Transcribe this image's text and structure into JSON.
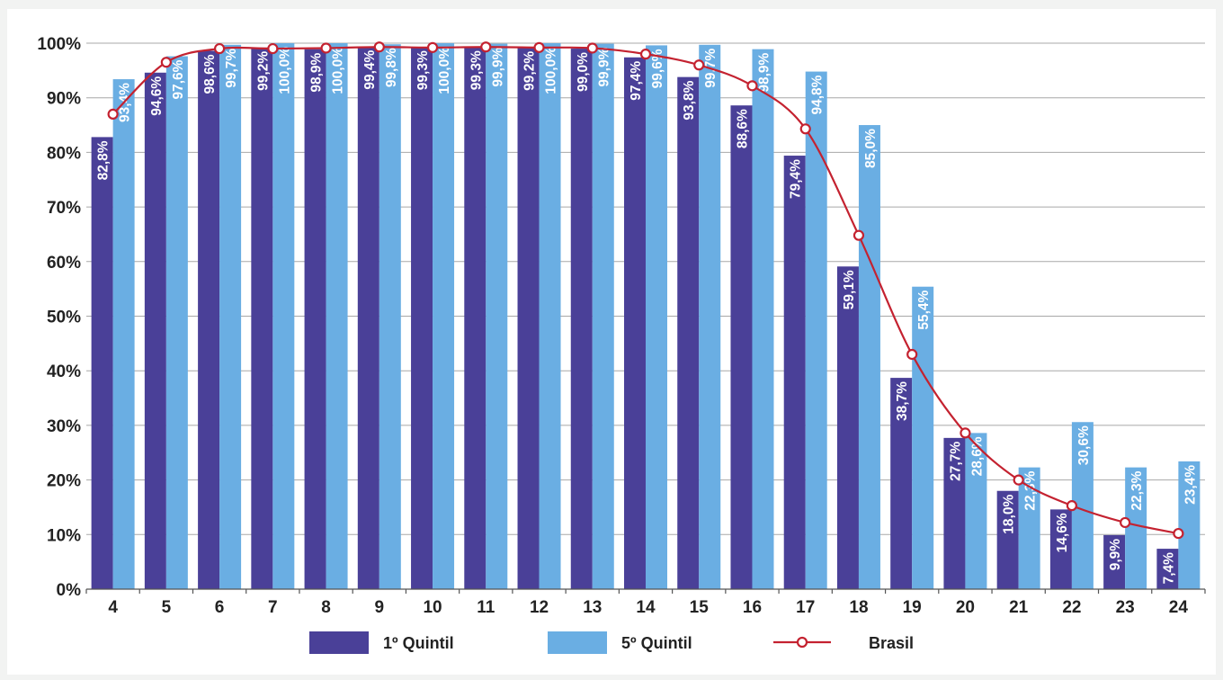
{
  "chart_data": {
    "type": "bar",
    "title": "",
    "xlabel": "",
    "ylabel": "",
    "ylim": [
      0,
      100
    ],
    "yticks": [
      "0%",
      "10%",
      "20%",
      "30%",
      "40%",
      "50%",
      "60%",
      "70%",
      "80%",
      "90%",
      "100%"
    ],
    "categories": [
      "4",
      "5",
      "6",
      "7",
      "8",
      "9",
      "10",
      "11",
      "12",
      "13",
      "14",
      "15",
      "16",
      "17",
      "18",
      "19",
      "20",
      "21",
      "22",
      "23",
      "24"
    ],
    "grid": true,
    "legend_position": "bottom",
    "series": [
      {
        "name": "1º Quintil",
        "kind": "bar",
        "color": "#4a4098",
        "values": [
          82.8,
          94.6,
          98.6,
          99.2,
          98.9,
          99.4,
          99.3,
          99.3,
          99.2,
          99.0,
          97.4,
          93.8,
          88.6,
          79.4,
          59.1,
          38.7,
          27.7,
          18.0,
          14.6,
          9.9,
          7.4
        ],
        "labels": [
          "82,8%",
          "94,6%",
          "98,6%",
          "99,2%",
          "98,9%",
          "99,4%",
          "99,3%",
          "99,3%",
          "99,2%",
          "99,0%",
          "97,4%",
          "93,8%",
          "88,6%",
          "79,4%",
          "59,1%",
          "38,7%",
          "27,7%",
          "18,0%",
          "14,6%",
          "9,9%",
          "7,4%"
        ]
      },
      {
        "name": "5º Quintil",
        "kind": "bar",
        "color": "#6aaee3",
        "values": [
          93.4,
          97.6,
          99.7,
          100.0,
          100.0,
          99.8,
          100.0,
          99.9,
          100.0,
          99.9,
          99.6,
          99.7,
          98.9,
          94.8,
          85.0,
          55.4,
          28.6,
          22.3,
          30.6,
          22.3,
          23.4
        ],
        "labels": [
          "93,4%",
          "97,6%",
          "99,7%",
          "100,0%",
          "100,0%",
          "99,8%",
          "100,0%",
          "99,9%",
          "100,0%",
          "99,9%",
          "99,6%",
          "99,7%",
          "98,9%",
          "94,8%",
          "85,0%",
          "55,4%",
          "28,6%",
          "22,3%",
          "30,6%",
          "22,3%",
          "23,4%"
        ]
      },
      {
        "name": "Brasil",
        "kind": "line",
        "color": "#c42230",
        "values": [
          87.0,
          96.5,
          99.0,
          99.0,
          99.1,
          99.3,
          99.2,
          99.3,
          99.2,
          99.1,
          98.0,
          96.0,
          92.2,
          84.3,
          64.8,
          43.0,
          28.6,
          20.0,
          15.3,
          12.2,
          10.2
        ]
      }
    ]
  }
}
